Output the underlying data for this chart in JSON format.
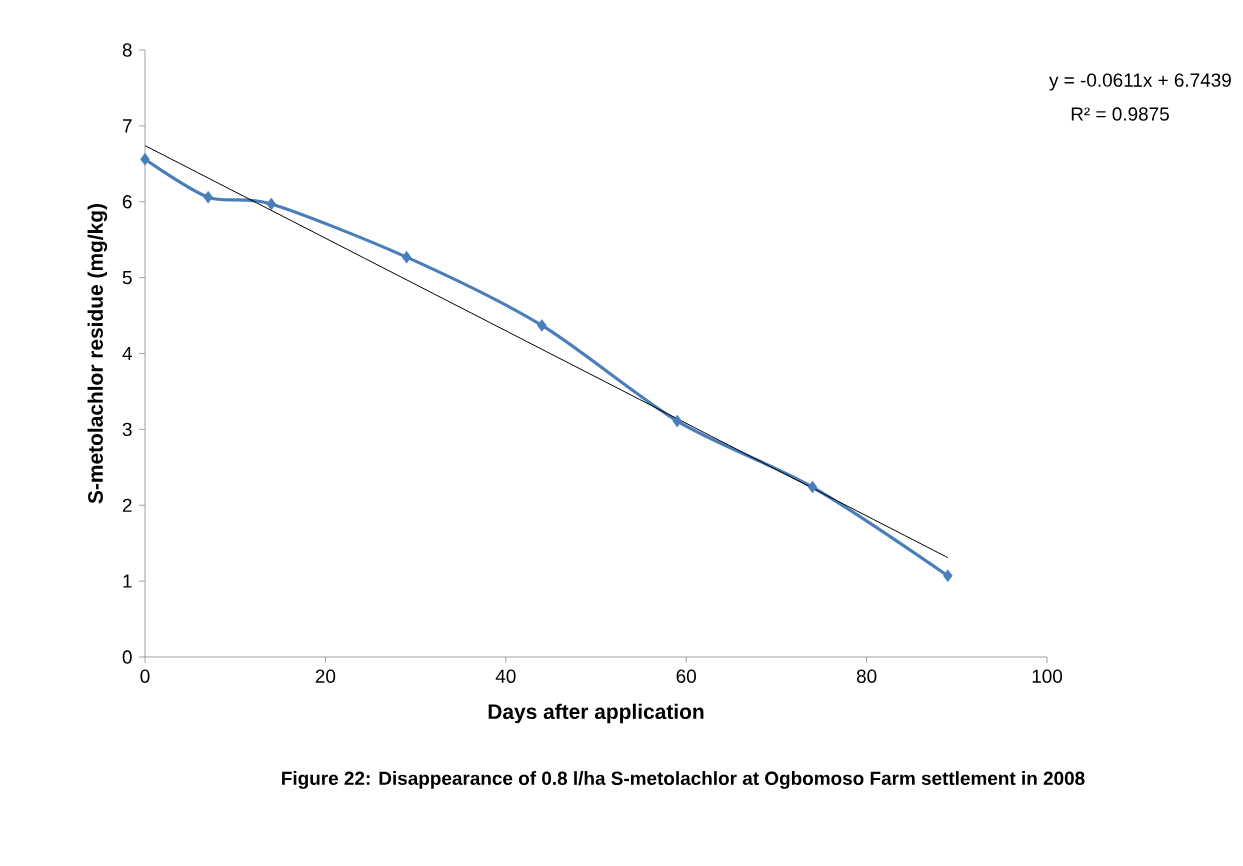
{
  "chart_data": {
    "type": "line",
    "xlabel": "Days after application",
    "ylabel": "S-metolachlor residue  (mg/kg)",
    "x": [
      0,
      7,
      14,
      29,
      44,
      59,
      74,
      89
    ],
    "series": [
      {
        "color": "#4a7ebb",
        "marker": "diamond",
        "values": [
          6.56,
          6.06,
          5.97,
          5.27,
          4.37,
          3.11,
          2.24,
          1.07
        ]
      },
      {
        "color": "#000000",
        "marker": "none",
        "x": [
          0,
          89
        ],
        "values": [
          6.74,
          1.31
        ]
      }
    ],
    "xlim": [
      0,
      100
    ],
    "xticks": [
      0,
      20,
      40,
      60,
      80,
      100
    ],
    "ylim": [
      0,
      8
    ],
    "yticks": [
      0,
      1,
      2,
      3,
      4,
      5,
      6,
      7,
      8
    ],
    "grid": false,
    "annotations": [
      "y = -0.0611x + 6.7439",
      "R² = 0.9875",
      "Figure 22: Disappearance of 0.8 l/ha S-metolachlor at Ogbomoso Farm settlement in 2008"
    ]
  }
}
